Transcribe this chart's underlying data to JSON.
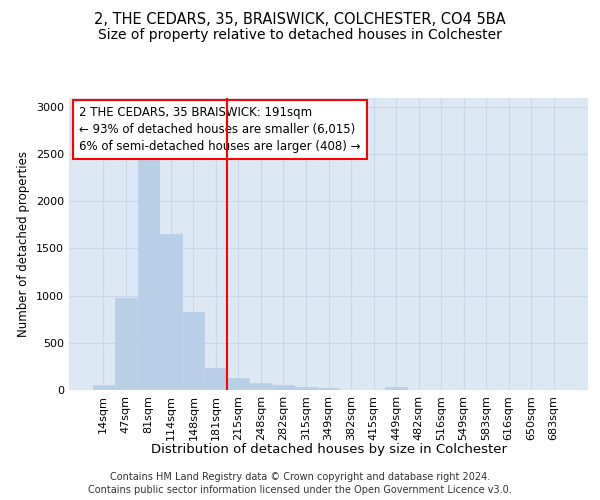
{
  "title1": "2, THE CEDARS, 35, BRAISWICK, COLCHESTER, CO4 5BA",
  "title2": "Size of property relative to detached houses in Colchester",
  "xlabel": "Distribution of detached houses by size in Colchester",
  "ylabel": "Number of detached properties",
  "categories": [
    "14sqm",
    "47sqm",
    "81sqm",
    "114sqm",
    "148sqm",
    "181sqm",
    "215sqm",
    "248sqm",
    "282sqm",
    "315sqm",
    "349sqm",
    "382sqm",
    "415sqm",
    "449sqm",
    "482sqm",
    "516sqm",
    "549sqm",
    "583sqm",
    "616sqm",
    "650sqm",
    "683sqm"
  ],
  "values": [
    50,
    975,
    2450,
    1650,
    825,
    230,
    130,
    75,
    50,
    30,
    20,
    0,
    0,
    30,
    0,
    0,
    0,
    0,
    0,
    0,
    0
  ],
  "bar_color": "#b8cfe8",
  "bar_edge_color": "#b8cfe8",
  "grid_color": "#c8d8e8",
  "bg_color": "#dce8f4",
  "vline_color": "red",
  "vline_index": 5,
  "annotation_text": "2 THE CEDARS, 35 BRAISWICK: 191sqm\n← 93% of detached houses are smaller (6,015)\n6% of semi-detached houses are larger (408) →",
  "annotation_box_color": "red",
  "ylim": [
    0,
    3100
  ],
  "yticks": [
    0,
    500,
    1000,
    1500,
    2000,
    2500,
    3000
  ],
  "footer1": "Contains HM Land Registry data © Crown copyright and database right 2024.",
  "footer2": "Contains public sector information licensed under the Open Government Licence v3.0.",
  "title1_fontsize": 10.5,
  "title2_fontsize": 10,
  "xlabel_fontsize": 9.5,
  "ylabel_fontsize": 8.5,
  "tick_fontsize": 8,
  "annotation_fontsize": 8.5,
  "footer_fontsize": 7
}
